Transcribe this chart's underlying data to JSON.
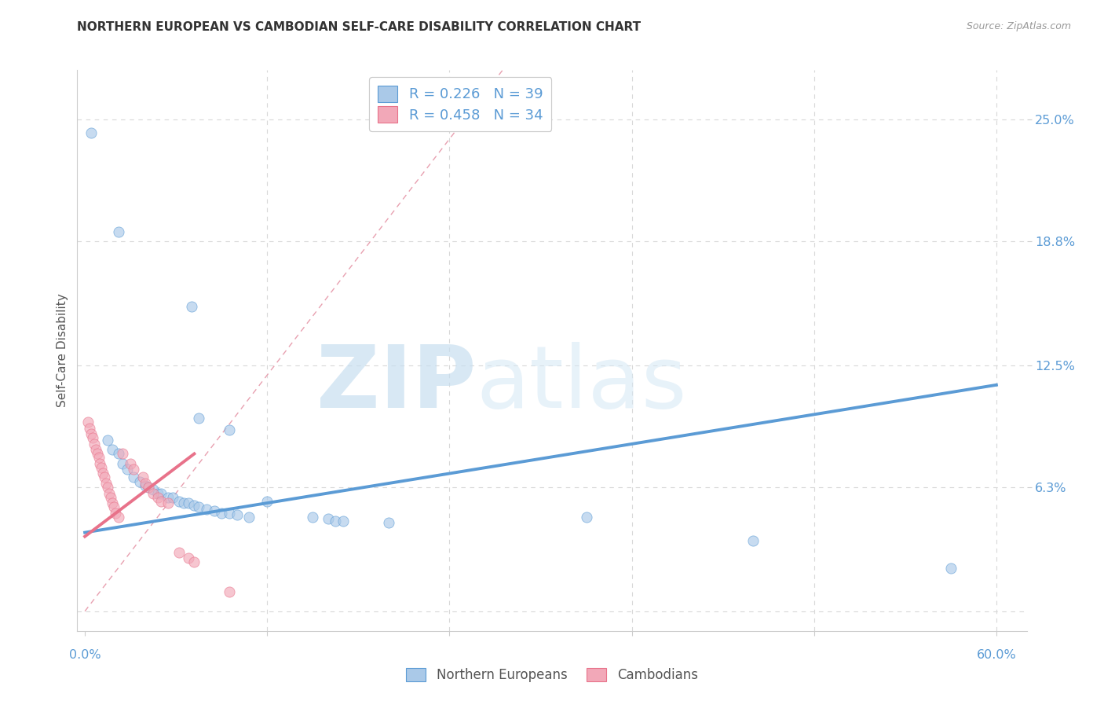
{
  "title": "NORTHERN EUROPEAN VS CAMBODIAN SELF-CARE DISABILITY CORRELATION CHART",
  "source": "Source: ZipAtlas.com",
  "ylabel": "Self-Care Disability",
  "ytick_labels": [
    "25.0%",
    "18.8%",
    "12.5%",
    "6.3%"
  ],
  "ytick_values": [
    0.25,
    0.188,
    0.125,
    0.063
  ],
  "xlim": [
    -0.005,
    0.62
  ],
  "ylim": [
    -0.01,
    0.275
  ],
  "blue_scatter": [
    [
      0.004,
      0.243
    ],
    [
      0.022,
      0.193
    ],
    [
      0.07,
      0.155
    ],
    [
      0.075,
      0.098
    ],
    [
      0.095,
      0.092
    ],
    [
      0.015,
      0.087
    ],
    [
      0.018,
      0.082
    ],
    [
      0.022,
      0.08
    ],
    [
      0.025,
      0.075
    ],
    [
      0.028,
      0.072
    ],
    [
      0.032,
      0.068
    ],
    [
      0.036,
      0.066
    ],
    [
      0.04,
      0.064
    ],
    [
      0.042,
      0.063
    ],
    [
      0.045,
      0.062
    ],
    [
      0.048,
      0.06
    ],
    [
      0.05,
      0.06
    ],
    [
      0.055,
      0.058
    ],
    [
      0.058,
      0.058
    ],
    [
      0.062,
      0.056
    ],
    [
      0.065,
      0.055
    ],
    [
      0.068,
      0.055
    ],
    [
      0.072,
      0.054
    ],
    [
      0.075,
      0.053
    ],
    [
      0.08,
      0.052
    ],
    [
      0.085,
      0.051
    ],
    [
      0.09,
      0.05
    ],
    [
      0.095,
      0.05
    ],
    [
      0.1,
      0.049
    ],
    [
      0.108,
      0.048
    ],
    [
      0.12,
      0.056
    ],
    [
      0.15,
      0.048
    ],
    [
      0.16,
      0.047
    ],
    [
      0.165,
      0.046
    ],
    [
      0.17,
      0.046
    ],
    [
      0.2,
      0.045
    ],
    [
      0.33,
      0.048
    ],
    [
      0.44,
      0.036
    ],
    [
      0.57,
      0.022
    ]
  ],
  "pink_scatter": [
    [
      0.002,
      0.096
    ],
    [
      0.003,
      0.093
    ],
    [
      0.004,
      0.09
    ],
    [
      0.005,
      0.088
    ],
    [
      0.006,
      0.085
    ],
    [
      0.007,
      0.082
    ],
    [
      0.008,
      0.08
    ],
    [
      0.009,
      0.078
    ],
    [
      0.01,
      0.075
    ],
    [
      0.011,
      0.073
    ],
    [
      0.012,
      0.07
    ],
    [
      0.013,
      0.068
    ],
    [
      0.014,
      0.065
    ],
    [
      0.015,
      0.063
    ],
    [
      0.016,
      0.06
    ],
    [
      0.017,
      0.058
    ],
    [
      0.018,
      0.055
    ],
    [
      0.019,
      0.053
    ],
    [
      0.02,
      0.05
    ],
    [
      0.022,
      0.048
    ],
    [
      0.025,
      0.08
    ],
    [
      0.03,
      0.075
    ],
    [
      0.032,
      0.072
    ],
    [
      0.038,
      0.068
    ],
    [
      0.04,
      0.065
    ],
    [
      0.042,
      0.063
    ],
    [
      0.045,
      0.06
    ],
    [
      0.048,
      0.058
    ],
    [
      0.05,
      0.056
    ],
    [
      0.055,
      0.055
    ],
    [
      0.062,
      0.03
    ],
    [
      0.068,
      0.027
    ],
    [
      0.072,
      0.025
    ],
    [
      0.095,
      0.01
    ]
  ],
  "blue_line_x": [
    0.0,
    0.6
  ],
  "blue_line_y": [
    0.04,
    0.115
  ],
  "pink_line_x": [
    0.0,
    0.072
  ],
  "pink_line_y": [
    0.038,
    0.08
  ],
  "diag_line_x": [
    0.0,
    0.275
  ],
  "diag_line_y": [
    0.0,
    0.275
  ],
  "watermark_zip": "ZIP",
  "watermark_atlas": "atlas",
  "background_color": "#ffffff",
  "grid_color": "#d8d8d8",
  "blue_color": "#5b9bd5",
  "pink_color": "#e8728a",
  "blue_fill": "#aac9e8",
  "pink_fill": "#f2a8b8",
  "scatter_alpha": 0.65,
  "scatter_size": 90
}
